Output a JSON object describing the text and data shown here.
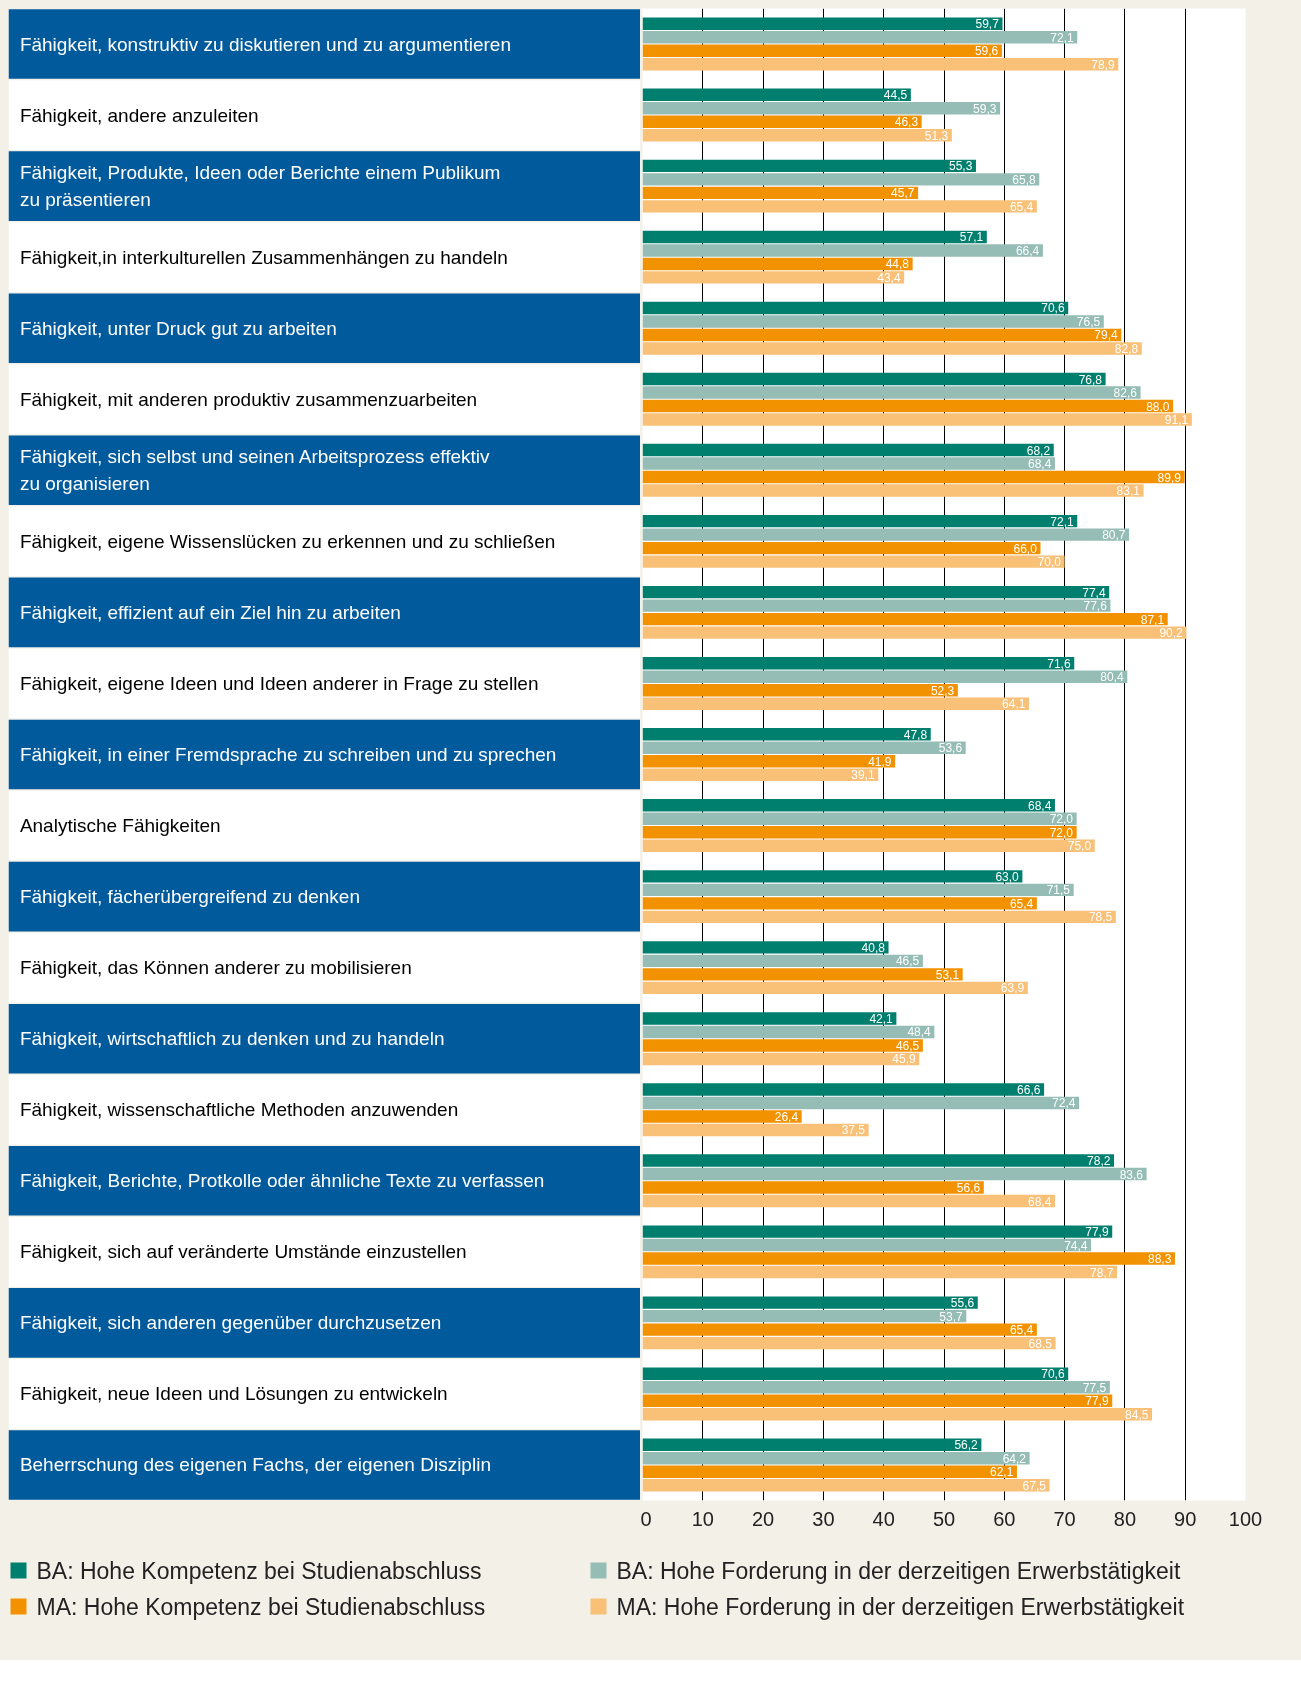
{
  "chart_data": {
    "type": "bar",
    "orientation": "horizontal",
    "categories": [
      "Fähigkeit, konstruktiv zu diskutieren und zu argumentieren",
      "Fähigkeit, andere anzuleiten",
      "Fähigkeit, Produkte, Ideen oder Berichte einem Publikum\nzu präsentieren",
      "Fähigkeit,in interkulturellen Zusammenhängen zu handeln",
      "Fähigkeit, unter Druck gut zu arbeiten",
      "Fähigkeit, mit anderen produktiv zusammenzuarbeiten",
      "Fähigkeit, sich selbst und seinen Arbeitsprozess effektiv\nzu organisieren",
      "Fähigkeit, eigene Wissenslücken zu erkennen und zu schließen",
      "Fähigkeit, effizient auf ein Ziel hin zu arbeiten",
      "Fähigkeit, eigene Ideen und Ideen anderer in Frage zu stellen",
      "Fähigkeit, in einer Fremdsprache zu schreiben und zu sprechen",
      "Analytische Fähigkeiten",
      "Fähigkeit, fächerübergreifend zu denken",
      "Fähigkeit, das Können anderer zu mobilisieren",
      "Fähigkeit, wirtschaftlich zu denken und zu handeln",
      "Fähigkeit, wissenschaftliche Methoden anzuwenden",
      "Fähigkeit, Berichte, Protkolle oder ähnliche Texte zu verfassen",
      "Fähigkeit, sich auf veränderte Umstände einzustellen",
      "Fähigkeit, sich anderen gegenüber durchzusetzen",
      "Fähigkeit, neue Ideen und Lösungen zu entwickeln",
      "Beherrschung des eigenen Fachs, der eigenen Disziplin"
    ],
    "series": [
      {
        "name": "BA: Hohe Kompetenz bei Studienabschluss",
        "color": "#007f6e",
        "values": [
          59.7,
          44.5,
          55.3,
          57.1,
          70.6,
          76.8,
          68.2,
          72.1,
          77.4,
          71.6,
          47.8,
          68.4,
          63.0,
          40.8,
          42.1,
          66.6,
          78.2,
          77.9,
          55.6,
          70.6,
          56.2
        ],
        "value_labels": [
          "59,7",
          "44,5",
          "55,3",
          "57,1",
          "70,6",
          "76,8",
          "68,2",
          "72,1",
          "77,4",
          "71,6",
          "47,8",
          "68,4",
          "63,0",
          "40,8",
          "42,1",
          "66,6",
          "78,2",
          "77,9",
          "55,6",
          "70,6",
          "56,2"
        ]
      },
      {
        "name": "BA: Hohe Forderung in der derzeitigen Erwerbstätigkeit",
        "color": "#95bdb5",
        "values": [
          72.1,
          59.3,
          65.8,
          66.4,
          76.5,
          82.6,
          68.4,
          80.7,
          77.6,
          80.4,
          53.6,
          72.0,
          71.5,
          46.5,
          48.4,
          72.4,
          83.6,
          74.4,
          53.7,
          77.5,
          64.2
        ],
        "value_labels": [
          "72,1",
          "59,3",
          "65,8",
          "66,4",
          "76,5",
          "82,6",
          "68,4",
          "80,7",
          "77,6",
          "80,4",
          "53,6",
          "72,0",
          "71,5",
          "46,5",
          "48,4",
          "72,4",
          "83,6",
          "74,4",
          "53,7",
          "77,5",
          "64,2"
        ]
      },
      {
        "name": "MA: Hohe Kompetenz bei Studienabschluss",
        "color": "#f39200",
        "values": [
          59.6,
          46.3,
          45.7,
          44.8,
          79.4,
          88.0,
          89.9,
          66.0,
          87.1,
          52.3,
          41.9,
          72.0,
          65.4,
          53.1,
          46.5,
          26.4,
          56.6,
          88.3,
          65.4,
          77.9,
          62.1
        ],
        "value_labels": [
          "59,6",
          "46,3",
          "45,7",
          "44,8",
          "79,4",
          "88,0",
          "89,9",
          "66,0",
          "87,1",
          "52,3",
          "41,9",
          "72,0",
          "65,4",
          "53,1",
          "46,5",
          "26,4",
          "56,6",
          "88,3",
          "65,4",
          "77,9",
          "62,1"
        ]
      },
      {
        "name": "MA: Hohe Forderung in der derzeitigen Erwerbstätigkeit",
        "color": "#f9c077",
        "values": [
          78.9,
          51.3,
          65.4,
          43.4,
          82.8,
          91.1,
          83.1,
          70.0,
          90.2,
          64.1,
          39.1,
          75.0,
          78.5,
          63.9,
          45.9,
          37.5,
          68.4,
          78.7,
          68.5,
          84.5,
          67.5
        ],
        "value_labels": [
          "78,9",
          "51,3",
          "65,4",
          "43,4",
          "82,8",
          "91,1",
          "83,1",
          "70,0",
          "90,2",
          "64,1",
          "39,1",
          "75,0",
          "78,5",
          "63,9",
          "45,9",
          "37,5",
          "68,4",
          "78,7",
          "68,5",
          "84,5",
          "67,5"
        ]
      }
    ],
    "xlim": [
      0,
      100
    ],
    "xticks": [
      0,
      10,
      20,
      30,
      40,
      50,
      60,
      70,
      80,
      90,
      100
    ],
    "grid": "x",
    "legend": "bottom"
  }
}
